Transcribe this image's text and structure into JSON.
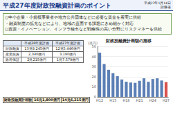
{
  "header": {
    "title": "平成27年度財政投融資計画のポイント",
    "date": "平成27年1月14日",
    "ministry": "財務省"
  },
  "bullets": [
    "○中小企業・小規模事業者や地方公共団体などに必要な資金を着実に供給",
    "・融資制度の拡充などにより、地域の直面する課題にきめ細かく対応",
    "○資源・イノベーション、インフラ輸出など戦略性の高い分野にリスクマネーを供給"
  ],
  "table": {
    "header": [
      "",
      "平成26年度計画",
      "平成27年度計画"
    ],
    "rows": [
      [
        "財政融資",
        "13兆9,245億円",
        "12兆5,446億円"
      ],
      [
        "産業投資",
        "2,340億円",
        "3,190億円"
      ],
      [
        "政府保証",
        "2兆215億円",
        "1兆7,579億円"
      ]
    ]
  },
  "summary": [
    "財政投融資計画額",
    "16兆1,800億円",
    "14兆6,215億円"
  ],
  "chart_data": {
    "type": "bar",
    "title": "財政投融資計画額の推移",
    "y_label": "(兆円)",
    "categories": [
      "H12",
      null,
      null,
      "H15",
      null,
      null,
      "H18",
      null,
      null,
      "H21",
      null,
      null,
      "H24",
      null,
      null,
      "H27"
    ],
    "values": [
      43.7,
      32.5,
      26.8,
      23.4,
      20.5,
      17.2,
      15.0,
      14.2,
      13.9,
      15.9,
      18.4,
      14.9,
      17.7,
      18.4,
      16.2,
      14.6
    ],
    "colors": [
      "#5b7fb5",
      "#5b7fb5",
      "#5b7fb5",
      "#5b7fb5",
      "#5b7fb5",
      "#5b7fb5",
      "#5b7fb5",
      "#5b7fb5",
      "#5b7fb5",
      "#5b7fb5",
      "#5b7fb5",
      "#5b7fb5",
      "#5b7fb5",
      "#5b7fb5",
      "#5b7fb5",
      "#d9534f"
    ],
    "ylim": [
      0,
      50
    ],
    "yticks": [
      0,
      10,
      20,
      30,
      40,
      50
    ],
    "grid": true
  }
}
